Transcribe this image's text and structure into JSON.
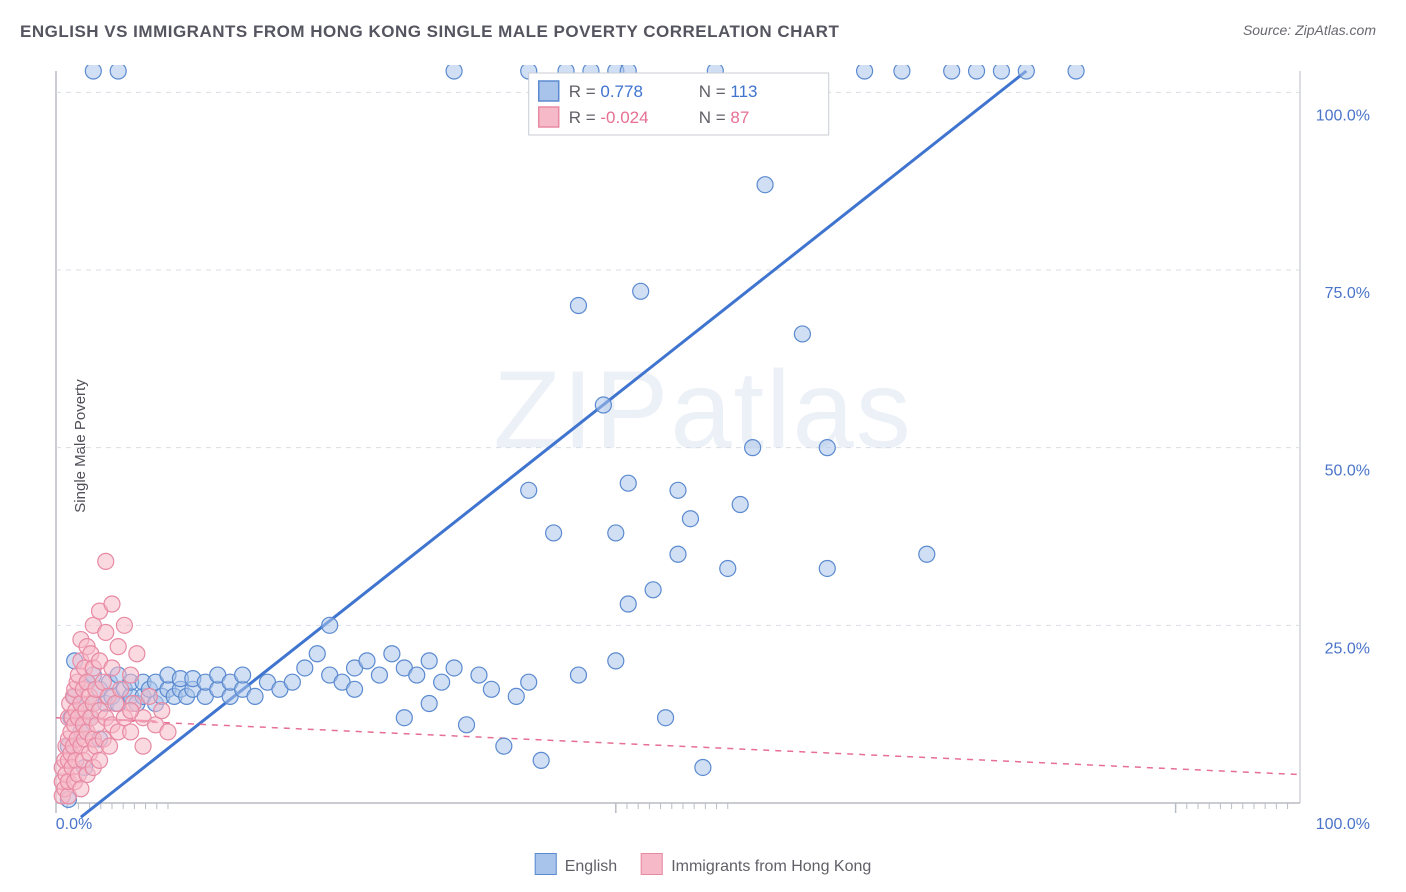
{
  "title": "ENGLISH VS IMMIGRANTS FROM HONG KONG SINGLE MALE POVERTY CORRELATION CHART",
  "source": "Source: ZipAtlas.com",
  "ylabel": "Single Male Poverty",
  "watermark": "ZIPatlas",
  "chart": {
    "type": "scatter",
    "background_color": "#ffffff",
    "grid_color": "#d9dde3",
    "axis_color": "#b8bcc4",
    "xlim": [
      0,
      100
    ],
    "ylim": [
      0,
      103
    ],
    "ytick_values": [
      25,
      50,
      75,
      100
    ],
    "ytick_labels": [
      "25.0%",
      "50.0%",
      "75.0%",
      "100.0%"
    ],
    "xtick_minor_starts": [
      0,
      45,
      90
    ],
    "xtick_labels": {
      "left": "0.0%",
      "right": "100.0%"
    },
    "marker_radius": 8,
    "marker_opacity": 0.55,
    "line_width_blue": 3,
    "line_width_pink": 1.5,
    "pink_dash": "6 6",
    "series": [
      {
        "name": "English",
        "fill": "#a9c4ea",
        "stroke": "#5b8ad0",
        "stat_color": "#3f74cf",
        "R": "0.778",
        "N": "113",
        "trend": {
          "x1": 2,
          "y1": -2,
          "x2": 78,
          "y2": 103,
          "dash": null
        },
        "points": [
          [
            1,
            0.5
          ],
          [
            1,
            8
          ],
          [
            1.2,
            12
          ],
          [
            1.5,
            15
          ],
          [
            1.5,
            20
          ],
          [
            2,
            10
          ],
          [
            2,
            14
          ],
          [
            2.3,
            5
          ],
          [
            2.5,
            17
          ],
          [
            2.8,
            12
          ],
          [
            3,
            14
          ],
          [
            3,
            18
          ],
          [
            3.5,
            16
          ],
          [
            3.5,
            9
          ],
          [
            4,
            14
          ],
          [
            4.3,
            17
          ],
          [
            4.5,
            15
          ],
          [
            5,
            14
          ],
          [
            5,
            18
          ],
          [
            5.5,
            16
          ],
          [
            6,
            15
          ],
          [
            6,
            17
          ],
          [
            6.5,
            14
          ],
          [
            7,
            15
          ],
          [
            7,
            17
          ],
          [
            7.5,
            16
          ],
          [
            8,
            14
          ],
          [
            8,
            17
          ],
          [
            8.5,
            15
          ],
          [
            9,
            16
          ],
          [
            9,
            18
          ],
          [
            9.5,
            15
          ],
          [
            10,
            16
          ],
          [
            10,
            17.5
          ],
          [
            10.5,
            15
          ],
          [
            11,
            16
          ],
          [
            11,
            17.5
          ],
          [
            12,
            15
          ],
          [
            12,
            17
          ],
          [
            13,
            16
          ],
          [
            13,
            18
          ],
          [
            14,
            15
          ],
          [
            14,
            17
          ],
          [
            15,
            16
          ],
          [
            15,
            18
          ],
          [
            16,
            15
          ],
          [
            17,
            17
          ],
          [
            18,
            16
          ],
          [
            19,
            17
          ],
          [
            20,
            19
          ],
          [
            21,
            21
          ],
          [
            22,
            25
          ],
          [
            22,
            18
          ],
          [
            23,
            17
          ],
          [
            24,
            19
          ],
          [
            24,
            16
          ],
          [
            25,
            20
          ],
          [
            26,
            18
          ],
          [
            27,
            21
          ],
          [
            28,
            12
          ],
          [
            28,
            19
          ],
          [
            29,
            18
          ],
          [
            30,
            20
          ],
          [
            30,
            14
          ],
          [
            31,
            17
          ],
          [
            32,
            19
          ],
          [
            33,
            11
          ],
          [
            34,
            18
          ],
          [
            35,
            16
          ],
          [
            36,
            8
          ],
          [
            37,
            15
          ],
          [
            38,
            17
          ],
          [
            39,
            6
          ],
          [
            40,
            38
          ],
          [
            41,
            103
          ],
          [
            42,
            70
          ],
          [
            42,
            18
          ],
          [
            43,
            103
          ],
          [
            44,
            56
          ],
          [
            45,
            103
          ],
          [
            45,
            38
          ],
          [
            46,
            45
          ],
          [
            46,
            28
          ],
          [
            47,
            72
          ],
          [
            48,
            30
          ],
          [
            49,
            12
          ],
          [
            50,
            35
          ],
          [
            50,
            44
          ],
          [
            51,
            40
          ],
          [
            52,
            5
          ],
          [
            53,
            103
          ],
          [
            54,
            33
          ],
          [
            55,
            42
          ],
          [
            56,
            50
          ],
          [
            57,
            87
          ],
          [
            60,
            66
          ],
          [
            62,
            33
          ],
          [
            62,
            50
          ],
          [
            65,
            103
          ],
          [
            68,
            103
          ],
          [
            70,
            35
          ],
          [
            72,
            103
          ],
          [
            74,
            103
          ],
          [
            76,
            103
          ],
          [
            78,
            103
          ],
          [
            82,
            103
          ],
          [
            38,
            103
          ],
          [
            32,
            103
          ],
          [
            45,
            20
          ],
          [
            46,
            103
          ],
          [
            3,
            103
          ],
          [
            5,
            103
          ],
          [
            38,
            44
          ]
        ]
      },
      {
        "name": "Immigrants from Hong Kong",
        "fill": "#f6b9c8",
        "stroke": "#e88aa3",
        "stat_color": "#e66f93",
        "R": "-0.024",
        "N": "87",
        "trend": {
          "x1": 0,
          "y1": 12,
          "x2": 100,
          "y2": 4,
          "dash": "6 6"
        },
        "points": [
          [
            0.5,
            1
          ],
          [
            0.5,
            3
          ],
          [
            0.5,
            5
          ],
          [
            0.7,
            2
          ],
          [
            0.7,
            6
          ],
          [
            0.8,
            8
          ],
          [
            0.8,
            4
          ],
          [
            1,
            1
          ],
          [
            1,
            3
          ],
          [
            1,
            6
          ],
          [
            1,
            9
          ],
          [
            1,
            12
          ],
          [
            1.1,
            14
          ],
          [
            1.2,
            7
          ],
          [
            1.2,
            10
          ],
          [
            1.3,
            5
          ],
          [
            1.3,
            12
          ],
          [
            1.4,
            8
          ],
          [
            1.4,
            15
          ],
          [
            1.5,
            3
          ],
          [
            1.5,
            11
          ],
          [
            1.5,
            16
          ],
          [
            1.6,
            6
          ],
          [
            1.6,
            13
          ],
          [
            1.7,
            9
          ],
          [
            1.7,
            17
          ],
          [
            1.8,
            4
          ],
          [
            1.8,
            12
          ],
          [
            1.8,
            18
          ],
          [
            2,
            2
          ],
          [
            2,
            8
          ],
          [
            2,
            14
          ],
          [
            2,
            20
          ],
          [
            2,
            23
          ],
          [
            2.2,
            6
          ],
          [
            2.2,
            11
          ],
          [
            2.2,
            16
          ],
          [
            2.3,
            9
          ],
          [
            2.3,
            19
          ],
          [
            2.4,
            13
          ],
          [
            2.5,
            4
          ],
          [
            2.5,
            10
          ],
          [
            2.5,
            17
          ],
          [
            2.5,
            22
          ],
          [
            2.7,
            7
          ],
          [
            2.7,
            15
          ],
          [
            2.8,
            12
          ],
          [
            2.8,
            21
          ],
          [
            3,
            5
          ],
          [
            3,
            9
          ],
          [
            3,
            14
          ],
          [
            3,
            19
          ],
          [
            3,
            25
          ],
          [
            3.2,
            8
          ],
          [
            3.2,
            16
          ],
          [
            3.3,
            11
          ],
          [
            3.5,
            6
          ],
          [
            3.5,
            13
          ],
          [
            3.5,
            20
          ],
          [
            3.5,
            27
          ],
          [
            3.8,
            9
          ],
          [
            3.8,
            17
          ],
          [
            4,
            12
          ],
          [
            4,
            24
          ],
          [
            4,
            34
          ],
          [
            4.2,
            15
          ],
          [
            4.3,
            8
          ],
          [
            4.5,
            11
          ],
          [
            4.5,
            19
          ],
          [
            4.5,
            28
          ],
          [
            4.8,
            14
          ],
          [
            5,
            10
          ],
          [
            5,
            22
          ],
          [
            5.2,
            16
          ],
          [
            5.5,
            12
          ],
          [
            5.5,
            25
          ],
          [
            6,
            18
          ],
          [
            6,
            10
          ],
          [
            6.2,
            14
          ],
          [
            6.5,
            21
          ],
          [
            7,
            12
          ],
          [
            7,
            8
          ],
          [
            7.5,
            15
          ],
          [
            8,
            11
          ],
          [
            8.5,
            13
          ],
          [
            9,
            10
          ],
          [
            6,
            13
          ]
        ]
      }
    ],
    "top_legend": {
      "rows": [
        {
          "swatch_fill": "#a9c4ea",
          "swatch_stroke": "#5b8ad0",
          "R_label": "R =",
          "R_val": "0.778",
          "N_label": "N =",
          "N_val": "113",
          "val_color": "#3f74cf"
        },
        {
          "swatch_fill": "#f6b9c8",
          "swatch_stroke": "#e88aa3",
          "R_label": "R =",
          "R_val": "-0.024",
          "N_label": "N =",
          "N_val": "87",
          "val_color": "#e66f93"
        }
      ]
    },
    "bottom_legend": [
      {
        "fill": "#a9c4ea",
        "stroke": "#5b8ad0",
        "label": "English"
      },
      {
        "fill": "#f6b9c8",
        "stroke": "#e88aa3",
        "label": "Immigrants from Hong Kong"
      }
    ]
  }
}
